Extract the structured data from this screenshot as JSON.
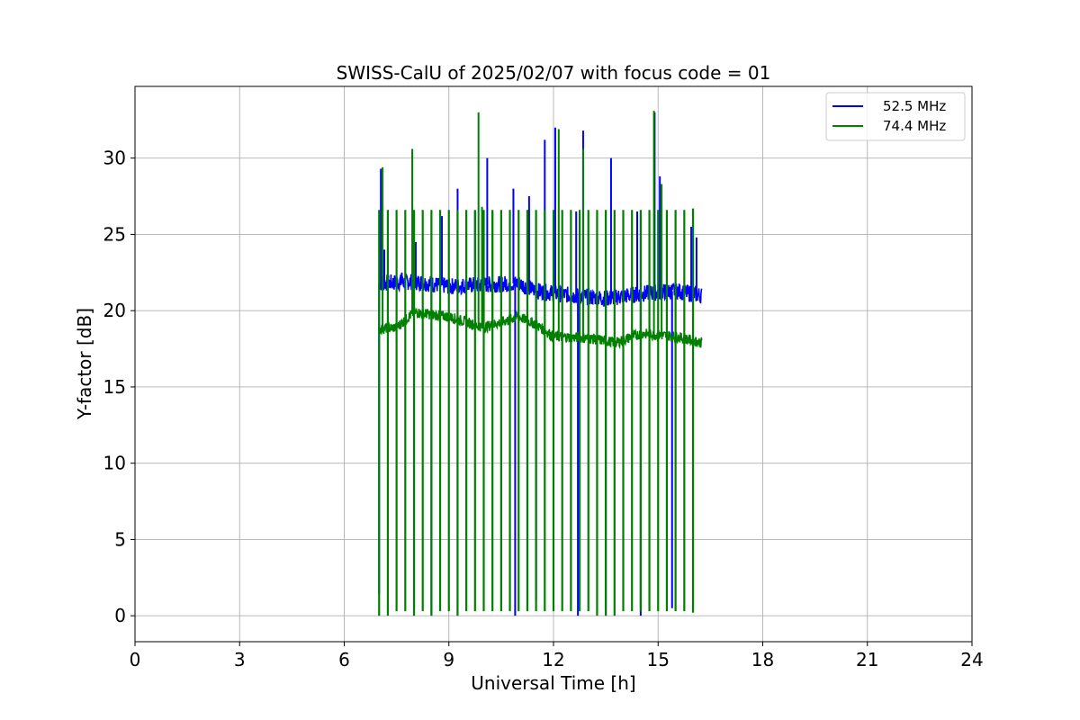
{
  "chart_data": {
    "type": "line",
    "title": "SWISS-CalU of 2025/02/07 with focus code = 01",
    "xlabel": "Universal Time [h]",
    "ylabel": "Y-factor [dB]",
    "xlim": [
      0,
      24
    ],
    "ylim": [
      -1.7,
      34.7
    ],
    "xticks": [
      0,
      3,
      6,
      9,
      12,
      15,
      18,
      21,
      24
    ],
    "yticks": [
      0,
      5,
      10,
      15,
      20,
      25,
      30
    ],
    "xtick_labels": [
      "0",
      "3",
      "6",
      "9",
      "12",
      "15",
      "18",
      "21",
      "24"
    ],
    "ytick_labels": [
      "0",
      "5",
      "10",
      "15",
      "20",
      "25",
      "30"
    ],
    "grid": true,
    "legend_position": "top-right",
    "series": [
      {
        "name": "52.5 MHz",
        "color": "#0000ff",
        "time_range": [
          7.0,
          16.25
        ],
        "baseline": [
          [
            7.0,
            21.8
          ],
          [
            8.0,
            21.9
          ],
          [
            9.0,
            21.6
          ],
          [
            10.0,
            21.7
          ],
          [
            11.0,
            21.8
          ],
          [
            11.5,
            21.3
          ],
          [
            12.5,
            21.0
          ],
          [
            13.5,
            20.8
          ],
          [
            14.5,
            21.1
          ],
          [
            15.5,
            21.3
          ],
          [
            16.25,
            21.0
          ]
        ],
        "peaks": [
          [
            7.05,
            29.3
          ],
          [
            7.15,
            24.0
          ],
          [
            7.65,
            22.5
          ],
          [
            8.05,
            24.5
          ],
          [
            8.8,
            26.2
          ],
          [
            9.25,
            28.0
          ],
          [
            9.75,
            26.5
          ],
          [
            10.1,
            30.0
          ],
          [
            10.85,
            28.0
          ],
          [
            11.3,
            27.5
          ],
          [
            11.75,
            31.2
          ],
          [
            12.05,
            32.0
          ],
          [
            12.65,
            26.5
          ],
          [
            12.85,
            31.8
          ],
          [
            13.65,
            30.0
          ],
          [
            14.4,
            26.5
          ],
          [
            14.9,
            33.0
          ],
          [
            15.05,
            28.8
          ],
          [
            15.95,
            25.5
          ],
          [
            16.1,
            24.8
          ]
        ],
        "dips": [
          [
            7.0,
            1.4
          ],
          [
            8.0,
            0.0
          ],
          [
            8.5,
            0.0
          ],
          [
            9.25,
            0.0
          ],
          [
            10.9,
            0.0
          ],
          [
            11.5,
            1.0
          ],
          [
            12.7,
            0.0
          ],
          [
            13.5,
            0.0
          ],
          [
            14.5,
            0.0
          ],
          [
            15.4,
            0.5
          ]
        ]
      },
      {
        "name": "74.4 MHz",
        "color": "#008000",
        "time_range": [
          7.0,
          16.25
        ],
        "baseline": [
          [
            7.0,
            18.8
          ],
          [
            7.5,
            18.9
          ],
          [
            8.0,
            19.9
          ],
          [
            9.0,
            19.6
          ],
          [
            10.0,
            18.9
          ],
          [
            11.0,
            19.6
          ],
          [
            11.5,
            19.1
          ],
          [
            12.0,
            18.3
          ],
          [
            13.0,
            18.2
          ],
          [
            13.8,
            17.9
          ],
          [
            14.5,
            18.5
          ],
          [
            15.5,
            18.3
          ],
          [
            16.25,
            17.9
          ]
        ],
        "pulses": {
          "times": [
            7.0,
            7.25,
            7.5,
            7.75,
            8.0,
            8.25,
            8.5,
            8.75,
            9.0,
            9.25,
            9.5,
            9.75,
            10.0,
            10.25,
            10.5,
            10.75,
            11.0,
            11.25,
            11.5,
            11.75,
            12.0,
            12.25,
            12.5,
            12.75,
            13.0,
            13.25,
            13.5,
            13.75,
            14.0,
            14.25,
            14.5,
            14.75,
            15.0,
            15.25,
            15.5,
            15.75,
            16.0
          ],
          "high": [
            26.6,
            26.6,
            26.6,
            26.6,
            26.6,
            26.6,
            26.6,
            26.6,
            26.6,
            26.6,
            26.6,
            26.6,
            26.6,
            26.6,
            26.6,
            26.6,
            26.6,
            26.6,
            26.6,
            26.6,
            26.6,
            26.6,
            26.6,
            26.6,
            26.6,
            26.6,
            26.6,
            26.6,
            26.6,
            26.6,
            26.6,
            26.6,
            26.6,
            26.6,
            26.6,
            26.6,
            26.7
          ],
          "low": [
            0.0,
            0.0,
            0.3,
            0.3,
            0.0,
            0.3,
            0.0,
            0.3,
            0.3,
            0.0,
            0.3,
            0.3,
            0.3,
            0.3,
            0.3,
            0.3,
            0.3,
            0.3,
            0.3,
            0.3,
            0.3,
            0.3,
            0.3,
            0.3,
            0.3,
            0.0,
            0.0,
            0.0,
            0.3,
            0.3,
            0.3,
            0.3,
            0.3,
            0.3,
            0.3,
            0.3,
            0.2
          ]
        },
        "peaks": [
          [
            7.1,
            29.4
          ],
          [
            7.95,
            30.6
          ],
          [
            9.85,
            33.0
          ],
          [
            9.95,
            26.8
          ],
          [
            10.25,
            26.5
          ],
          [
            12.15,
            31.9
          ],
          [
            12.85,
            30.6
          ],
          [
            14.88,
            33.1
          ],
          [
            15.1,
            28.3
          ]
        ]
      }
    ]
  }
}
